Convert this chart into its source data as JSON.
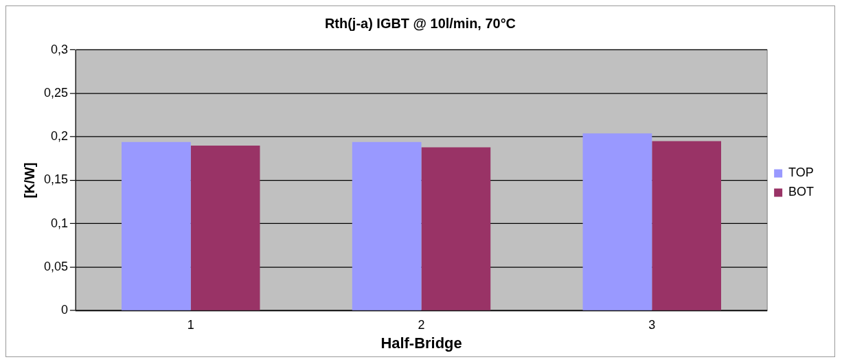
{
  "chart_data": {
    "type": "bar",
    "title": "Rth(j-a) IGBT @ 10l/min, 70°C",
    "xlabel": "Half-Bridge",
    "ylabel": "[K/W]",
    "categories": [
      "1",
      "2",
      "3"
    ],
    "series": [
      {
        "name": "TOP",
        "color": "#9999ff",
        "values": [
          0.194,
          0.194,
          0.204
        ]
      },
      {
        "name": "BOT",
        "color": "#993366",
        "values": [
          0.19,
          0.188,
          0.195
        ]
      }
    ],
    "ylim": [
      0,
      0.3
    ],
    "yticks": [
      0,
      {
        "value": 0.05,
        "label": "0,05"
      },
      {
        "value": 0.1,
        "label": "0,1"
      },
      {
        "value": 0.15,
        "label": "0,15"
      },
      {
        "value": 0.2,
        "label": "0,2"
      },
      {
        "value": 0.25,
        "label": "0,25"
      },
      {
        "value": 0.3,
        "label": "0,3"
      }
    ],
    "grid": "y",
    "legend": "right"
  }
}
